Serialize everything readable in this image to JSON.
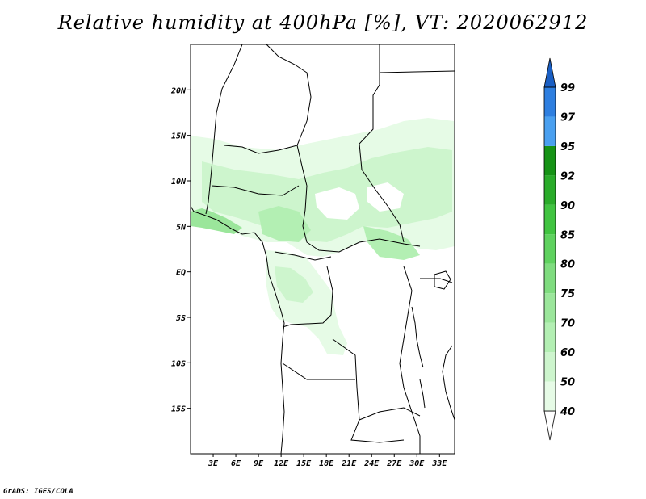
{
  "title": "Relative humidity at 400hPa [%], VT: 2020062912",
  "credit": "GrADS: IGES/COLA",
  "map": {
    "projection": "latlon",
    "lon_range": [
      0,
      35
    ],
    "lat_range": [
      -20,
      25
    ],
    "lat_ticks": [
      {
        "value": 20,
        "label": "20N"
      },
      {
        "value": 15,
        "label": "15N"
      },
      {
        "value": 10,
        "label": "10N"
      },
      {
        "value": 5,
        "label": "5N"
      },
      {
        "value": 0,
        "label": "EQ"
      },
      {
        "value": -5,
        "label": "5S"
      },
      {
        "value": -10,
        "label": "10S"
      },
      {
        "value": -15,
        "label": "15S"
      }
    ],
    "lon_ticks": [
      {
        "value": 3,
        "label": "3E"
      },
      {
        "value": 6,
        "label": "6E"
      },
      {
        "value": 9,
        "label": "9E"
      },
      {
        "value": 12,
        "label": "12E"
      },
      {
        "value": 15,
        "label": "15E"
      },
      {
        "value": 18,
        "label": "18E"
      },
      {
        "value": 21,
        "label": "21E"
      },
      {
        "value": 24,
        "label": "24E"
      },
      {
        "value": 27,
        "label": "27E"
      },
      {
        "value": 30,
        "label": "30E"
      },
      {
        "value": 33,
        "label": "33E"
      }
    ]
  },
  "colorbar": {
    "levels": [
      "40",
      "50",
      "60",
      "70",
      "75",
      "80",
      "85",
      "90",
      "92",
      "95",
      "97",
      "99"
    ],
    "colors": [
      "#ffffff",
      "#e6fbe6",
      "#cdf5cd",
      "#b3efb3",
      "#9be69b",
      "#7fdc7f",
      "#5fd25f",
      "#41c441",
      "#2aac2a",
      "#169316",
      "#4aa0f0",
      "#2e7fe0",
      "#1a5fc4"
    ]
  }
}
